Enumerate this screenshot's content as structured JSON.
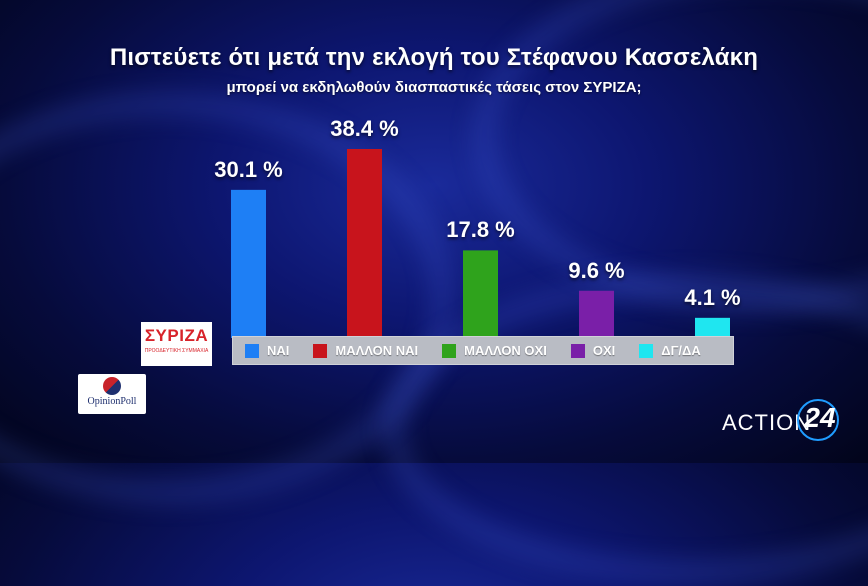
{
  "header": {
    "title": "Πιστεύετε ότι μετά την εκλογή του Στέφανου Κασσελάκη",
    "subtitle": "μπορεί να εκδηλωθούν διασπαστικές τάσεις στον ΣΥΡΙΖΑ;"
  },
  "chart_data": {
    "type": "bar",
    "title": "Πιστεύετε ότι μετά την εκλογή του Στέφανου Κασσελάκη μπορεί να εκδηλωθούν διασπαστικές τάσεις στον ΣΥΡΙΖΑ;",
    "categories": [
      "ΝΑΙ",
      "ΜΑΛΛΟΝ ΝΑΙ",
      "ΜΑΛΛΟΝ ΟΧΙ",
      "ΟΧΙ",
      "ΔΓ/ΔΑ"
    ],
    "values": [
      30.1,
      38.4,
      17.8,
      9.6,
      4.1
    ],
    "value_labels": [
      "30.1 %",
      "38.4 %",
      "17.8 %",
      "9.6 %",
      "4.1 %"
    ],
    "colors": [
      "#1e7ff5",
      "#c8141c",
      "#2fa31c",
      "#7a1fa8",
      "#1fe6f0"
    ],
    "ylim": [
      0,
      38.4
    ],
    "grid": false,
    "legend_position": "bottom"
  },
  "legend": [
    {
      "label": "ΝΑΙ",
      "color": "#1e7ff5"
    },
    {
      "label": "ΜΑΛΛΟΝ ΝΑΙ",
      "color": "#c8141c"
    },
    {
      "label": "ΜΑΛΛΟΝ ΟΧΙ",
      "color": "#2fa31c"
    },
    {
      "label": "ΟΧΙ",
      "color": "#7a1fa8"
    },
    {
      "label": "ΔΓ/ΔΑ",
      "color": "#1fe6f0"
    }
  ],
  "logos": {
    "party": "ΣΥΡΙΖΑ",
    "party_sub": "ΠΡΟΟΔΕΥΤΙΚΗ ΣΥΜΜΑΧΙΑ",
    "pollster": "OpinionPoll",
    "channel_word": "ACTION",
    "channel_number": "24"
  }
}
